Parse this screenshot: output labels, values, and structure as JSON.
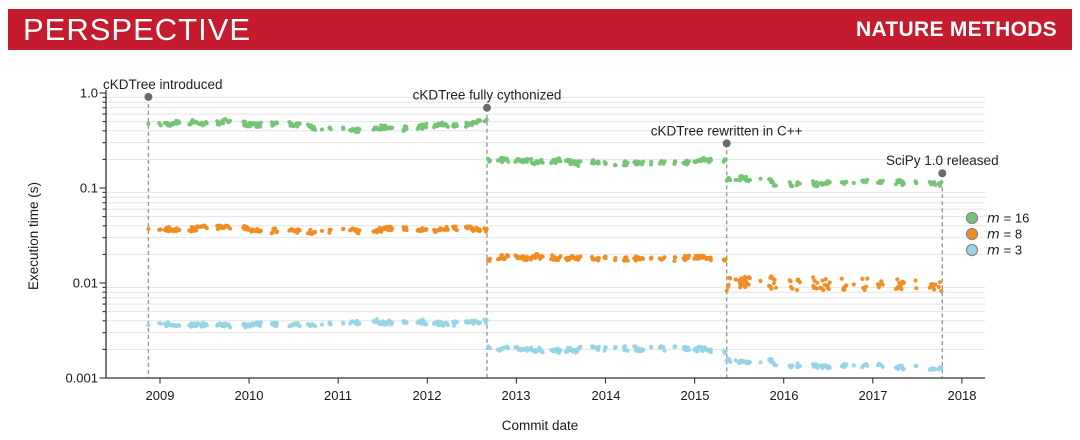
{
  "header": {
    "section": "PERSPECTIVE",
    "journal": "NATURE METHODS",
    "bar_color": "#C41B2E",
    "text_color": "#ffffff"
  },
  "chart_data": {
    "type": "scatter",
    "title": "",
    "xlabel": "Commit date",
    "ylabel": "Execution time (s)",
    "y_scale": "log",
    "ylim": [
      0.001,
      1.0
    ],
    "xlim": [
      2008.4,
      2018.26
    ],
    "grid": "horizontal-minor-log",
    "x_ticks": [
      "2009",
      "2010",
      "2011",
      "2012",
      "2013",
      "2014",
      "2015",
      "2016",
      "2017",
      "2018"
    ],
    "x_tick_values": [
      2009,
      2010,
      2011,
      2012,
      2013,
      2014,
      2015,
      2016,
      2017,
      2018
    ],
    "y_ticks": [
      {
        "value": 1.0,
        "label": "1.0"
      },
      {
        "value": 0.1,
        "label": "0.1"
      },
      {
        "value": 0.01,
        "label": "0.01"
      },
      {
        "value": 0.001,
        "label": "0.001"
      }
    ],
    "events": [
      {
        "label": "cKDTree introduced",
        "x": 2008.87,
        "dot_value": 0.91,
        "label_anchor": "start",
        "label_x": 103
      },
      {
        "label": "cKDTree fully cythonized",
        "x": 2012.67,
        "dot_value": 0.7,
        "label_anchor": "middle"
      },
      {
        "label": "cKDTree rewritten in C++",
        "x": 2015.36,
        "dot_value": 0.295,
        "label_anchor": "middle"
      },
      {
        "label": "SciPy 1.0 released",
        "x": 2017.78,
        "dot_value": 0.143,
        "label_anchor": "middle"
      }
    ],
    "event_marker_color": "#6b6b6b",
    "event_line_color": "#9b9b9b",
    "series": [
      {
        "name": "m = 16",
        "color": "#74c476",
        "segments": [
          {
            "x0": 2008.87,
            "x1": 2012.67,
            "y": 0.45
          },
          {
            "x0": 2012.67,
            "x1": 2015.36,
            "y": 0.195
          },
          {
            "x0": 2015.36,
            "x1": 2015.88,
            "y": 0.123
          },
          {
            "x0": 2015.88,
            "x1": 2017.781,
            "y": 0.109
          }
        ]
      },
      {
        "name": "m = 8",
        "color": "#f18c21",
        "segments": [
          {
            "x0": 2008.87,
            "x1": 2012.67,
            "y": 0.036
          },
          {
            "x0": 2012.67,
            "x1": 2015.36,
            "y": 0.0178
          },
          {
            "x0": 2015.36,
            "x1": 2017.781,
            "y": 0.0095,
            "jitter": 0.13
          }
        ]
      },
      {
        "name": "m = 3",
        "color": "#96d5e5",
        "segments": [
          {
            "x0": 2008.87,
            "x1": 2012.67,
            "y": 0.0037
          },
          {
            "x0": 2012.67,
            "x1": 2015.36,
            "y": 0.00205
          },
          {
            "x0": 2015.36,
            "x1": 2015.88,
            "y": 0.00152
          },
          {
            "x0": 2015.88,
            "x1": 2017.781,
            "y": 0.00136
          }
        ]
      }
    ],
    "legend": {
      "position": "right",
      "swatch_edge_color": "#8a8a8a",
      "items": [
        {
          "symbol": "m",
          "text": "= 16"
        },
        {
          "symbol": "m",
          "text": "= 8"
        },
        {
          "symbol": "m",
          "text": "= 3"
        }
      ]
    }
  }
}
